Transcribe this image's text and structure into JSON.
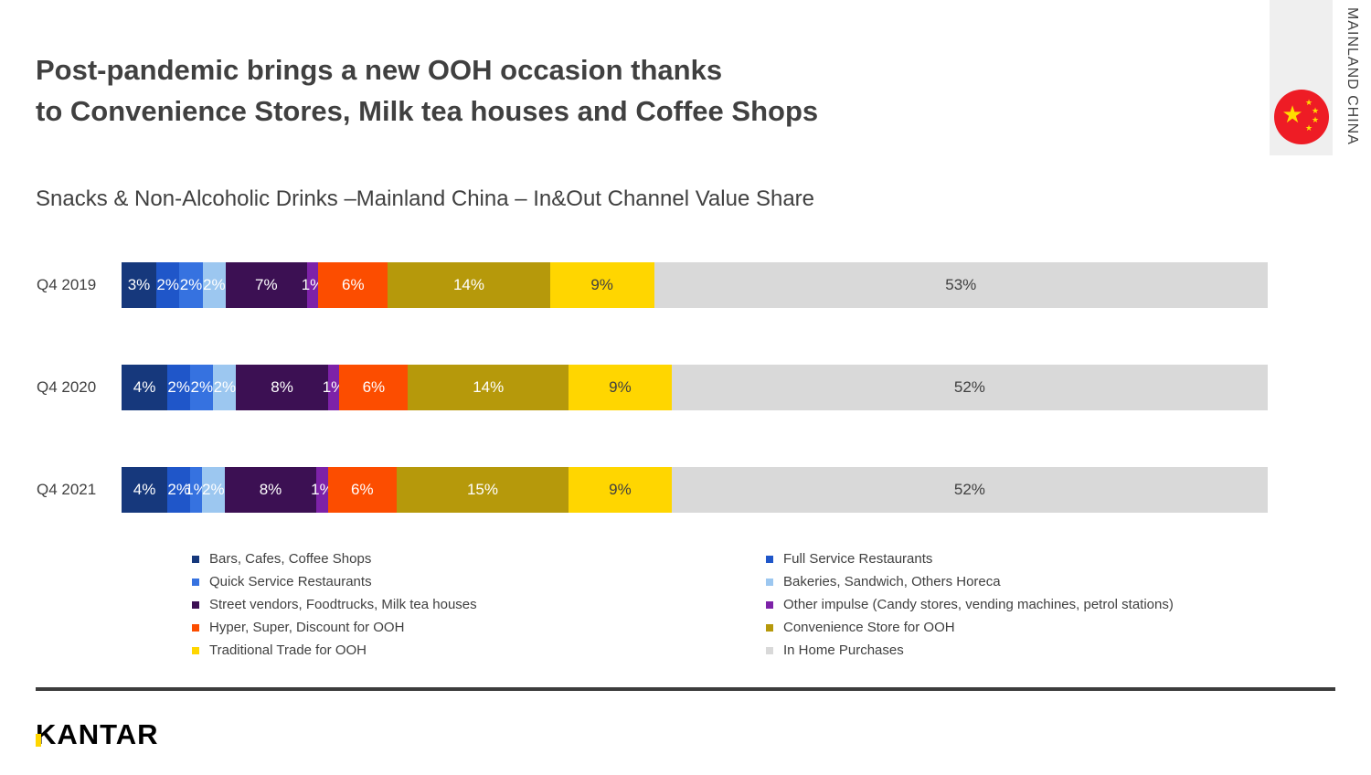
{
  "header": {
    "title": "Post-pandemic brings a new OOH occasion thanks\nto Convenience Stores, Milk tea houses and Coffee Shops",
    "region_label": "MAINLAND CHINA",
    "flag_colors": {
      "field": "#ee1c25",
      "stars": "#ffde00"
    }
  },
  "subtitle": "Snacks & Non-Alcoholic Drinks –Mainland China – In&Out Channel Value Share",
  "chart_data": {
    "type": "bar",
    "stacked": true,
    "orientation": "horizontal",
    "unit": "%",
    "categories": [
      "Q4 2019",
      "Q4 2020",
      "Q4 2021"
    ],
    "series": [
      {
        "name": "Bars, Cafes, Coffee Shops",
        "color": "#16387c",
        "label_color": "#ffffff",
        "values": [
          3,
          4,
          4
        ]
      },
      {
        "name": "Full Service Restaurants",
        "color": "#1f56c9",
        "label_color": "#ffffff",
        "values": [
          2,
          2,
          2
        ]
      },
      {
        "name": "Quick Service Restaurants",
        "color": "#3672e0",
        "label_color": "#ffffff",
        "values": [
          2,
          2,
          1
        ]
      },
      {
        "name": "Bakeries, Sandwich, Others Horeca",
        "color": "#9cc7f0",
        "label_color": "#ffffff",
        "values": [
          2,
          2,
          2
        ]
      },
      {
        "name": "Street vendors, Foodtrucks, Milk tea houses",
        "color": "#3c1053",
        "label_color": "#ffffff",
        "values": [
          7,
          8,
          8
        ]
      },
      {
        "name": "Other impulse (Candy stores, vending machines, petrol stations)",
        "color": "#7d22a8",
        "label_color": "#ffffff",
        "values": [
          1,
          1,
          1
        ]
      },
      {
        "name": "Hyper, Super, Discount for OOH",
        "color": "#fc4d00",
        "label_color": "#ffffff",
        "values": [
          6,
          6,
          6
        ]
      },
      {
        "name": "Convenience Store for OOH",
        "color": "#b6990b",
        "label_color": "#ffffff",
        "values": [
          14,
          14,
          15
        ]
      },
      {
        "name": "Traditional Trade for OOH",
        "color": "#ffd600",
        "label_color": "#404040",
        "values": [
          9,
          9,
          9
        ]
      },
      {
        "name": "In Home Purchases",
        "color": "#d9d9d9",
        "label_color": "#404040",
        "values": [
          53,
          52,
          52
        ]
      }
    ],
    "legend_position": "bottom"
  },
  "footer": {
    "logo": "KANTAR"
  }
}
